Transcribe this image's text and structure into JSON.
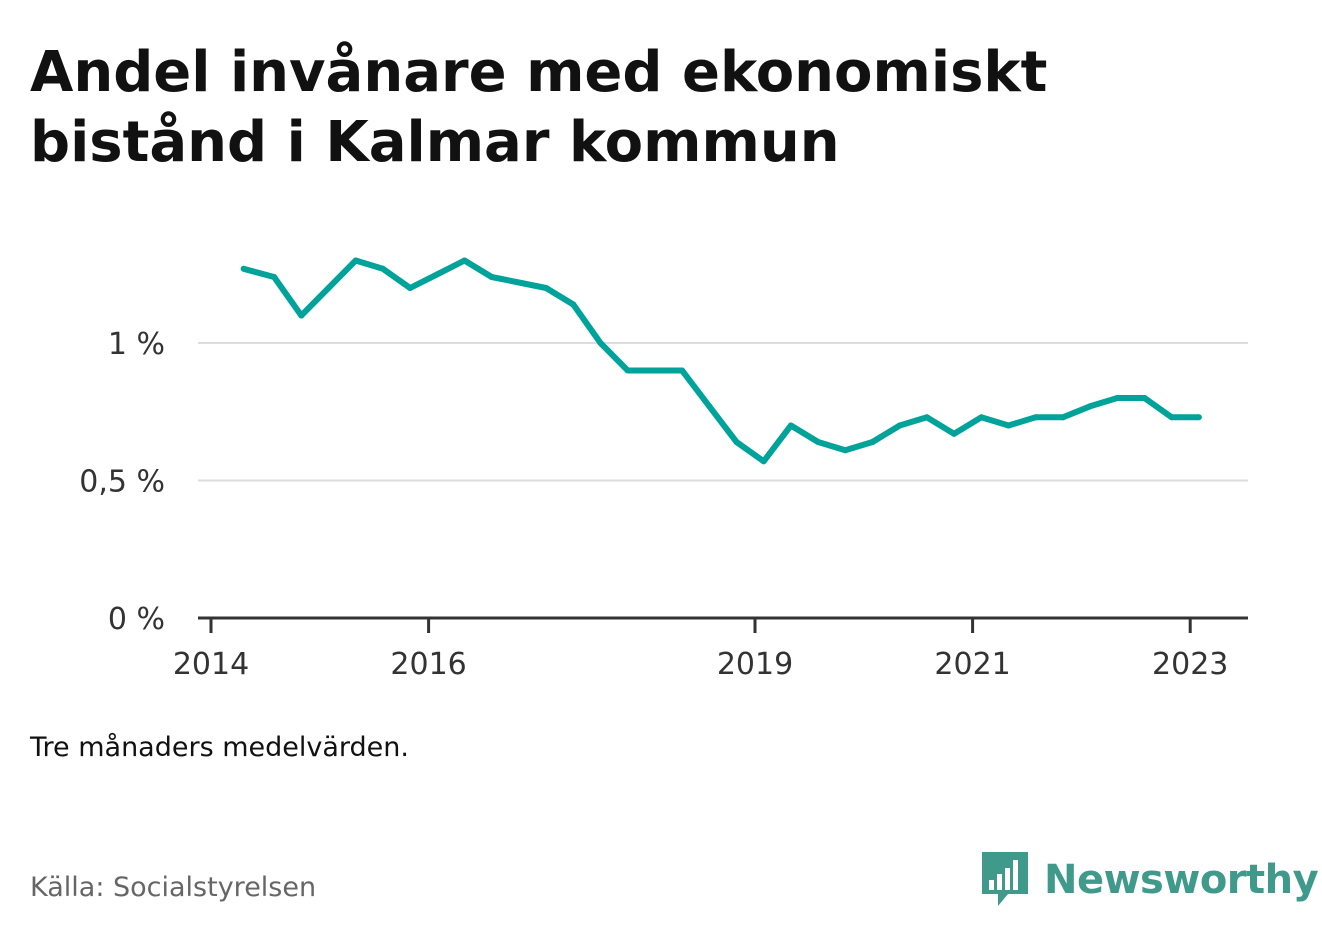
{
  "title": "Andel invånare med ekonomiskt bistånd i Kalmar kommun",
  "note": "Tre månaders medelvärden.",
  "source": "Källa: Socialstyrelsen",
  "brand": {
    "name": "Newsworthy",
    "icon": "newsworthy-logo-icon",
    "color": "#3f9a8b"
  },
  "colors": {
    "line": "#00a39a",
    "grid": "#dddddd",
    "axis": "#333333"
  },
  "chart_data": {
    "type": "line",
    "title": "Andel invånare med ekonomiskt bistånd i Kalmar kommun",
    "xlabel": "",
    "ylabel": "",
    "ylim": [
      0,
      1.3
    ],
    "xlim": [
      2014,
      2023.25
    ],
    "y_ticks": [
      {
        "value": 0,
        "label": "0 %"
      },
      {
        "value": 0.5,
        "label": "0,5 %"
      },
      {
        "value": 1,
        "label": "1 %"
      }
    ],
    "x_ticks": [
      {
        "value": 2014,
        "label": "2014"
      },
      {
        "value": 2016,
        "label": "2016"
      },
      {
        "value": 2019,
        "label": "2019"
      },
      {
        "value": 2021,
        "label": "2021"
      },
      {
        "value": 2023,
        "label": "2023"
      }
    ],
    "grid": true,
    "series": [
      {
        "x": [
          2014.3,
          2014.58,
          2014.83,
          2015.08,
          2015.33,
          2015.58,
          2015.83,
          2016.08,
          2016.33,
          2016.58,
          2016.83,
          2017.08,
          2017.33,
          2017.58,
          2017.83,
          2018.08,
          2018.33,
          2018.58,
          2018.83,
          2019.08,
          2019.33,
          2019.58,
          2019.83,
          2020.08,
          2020.33,
          2020.58,
          2020.83,
          2021.08,
          2021.33,
          2021.58,
          2021.83,
          2022.08,
          2022.33,
          2022.58,
          2022.83,
          2023.08
        ],
        "values": [
          1.27,
          1.24,
          1.1,
          1.2,
          1.3,
          1.27,
          1.2,
          1.25,
          1.3,
          1.24,
          1.22,
          1.2,
          1.14,
          1.0,
          0.9,
          0.9,
          0.9,
          0.77,
          0.64,
          0.57,
          0.7,
          0.64,
          0.61,
          0.64,
          0.7,
          0.73,
          0.67,
          0.73,
          0.7,
          0.73,
          0.73,
          0.77,
          0.8,
          0.8,
          0.73,
          0.73
        ]
      }
    ]
  }
}
